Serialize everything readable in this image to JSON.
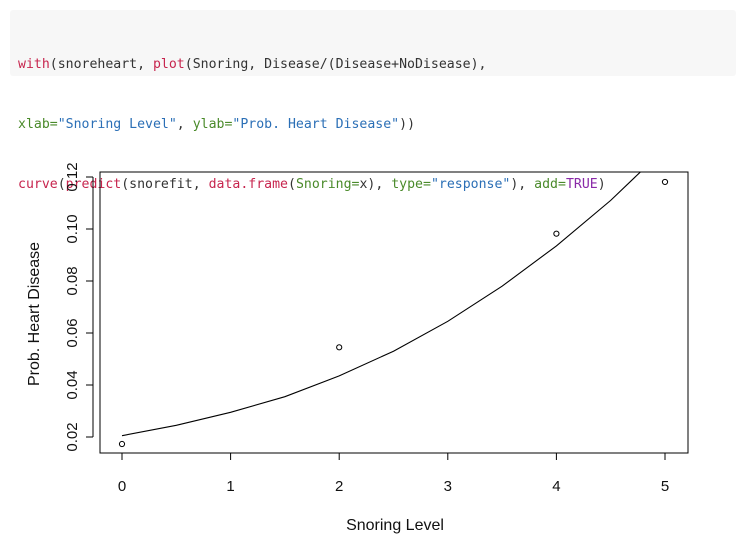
{
  "code": {
    "lines": [
      [
        {
          "t": "fn",
          "v": "with"
        },
        {
          "t": "txt",
          "v": "(snoreheart, "
        },
        {
          "t": "fn",
          "v": "plot"
        },
        {
          "t": "txt",
          "v": "(Snoring, Disease/(Disease+NoDisease),"
        }
      ],
      [
        {
          "t": "kw",
          "v": "xlab="
        },
        {
          "t": "str",
          "v": "\"Snoring Level\""
        },
        {
          "t": "txt",
          "v": ", "
        },
        {
          "t": "kw",
          "v": "ylab="
        },
        {
          "t": "str",
          "v": "\"Prob. Heart Disease\""
        },
        {
          "t": "txt",
          "v": "))"
        }
      ],
      [
        {
          "t": "fn",
          "v": "curve"
        },
        {
          "t": "txt",
          "v": "("
        },
        {
          "t": "fn",
          "v": "predict"
        },
        {
          "t": "txt",
          "v": "(snorefit, "
        },
        {
          "t": "fn",
          "v": "data.frame"
        },
        {
          "t": "txt",
          "v": "("
        },
        {
          "t": "kw",
          "v": "Snoring="
        },
        {
          "t": "txt",
          "v": "x), "
        },
        {
          "t": "kw",
          "v": "type="
        },
        {
          "t": "str",
          "v": "\"response\""
        },
        {
          "t": "txt",
          "v": "), "
        },
        {
          "t": "kw",
          "v": "add="
        },
        {
          "t": "bool",
          "v": "TRUE"
        },
        {
          "t": "txt",
          "v": ")"
        }
      ]
    ],
    "colors": {
      "fn": "#c7254e",
      "kw": "#4a8a2a",
      "str": "#2b6fb6",
      "bool": "#8a2aa8",
      "txt": "#333333"
    }
  },
  "chart_data": {
    "type": "scatter",
    "xlabel": "Snoring Level",
    "ylabel": "Prob. Heart Disease",
    "xlim": [
      0,
      5
    ],
    "ylim": [
      0.017,
      0.122
    ],
    "x_ticks": [
      0,
      1,
      2,
      3,
      4,
      5
    ],
    "y_ticks": [
      0.02,
      0.04,
      0.06,
      0.08,
      0.1,
      0.12
    ],
    "y_tick_labels": [
      "0.02",
      "0.04",
      "0.06",
      "0.08",
      "0.10",
      "0.12"
    ],
    "points": {
      "x": [
        0,
        2,
        4,
        5
      ],
      "y": [
        0.0173,
        0.0545,
        0.0982,
        0.1181
      ]
    },
    "curve": {
      "x": [
        0,
        0.5,
        1,
        1.5,
        2,
        2.5,
        3,
        3.5,
        4,
        4.5,
        4.8
      ],
      "y": [
        0.0205,
        0.0245,
        0.0295,
        0.0355,
        0.0435,
        0.053,
        0.0645,
        0.078,
        0.0935,
        0.111,
        0.123
      ]
    },
    "grid": false
  }
}
